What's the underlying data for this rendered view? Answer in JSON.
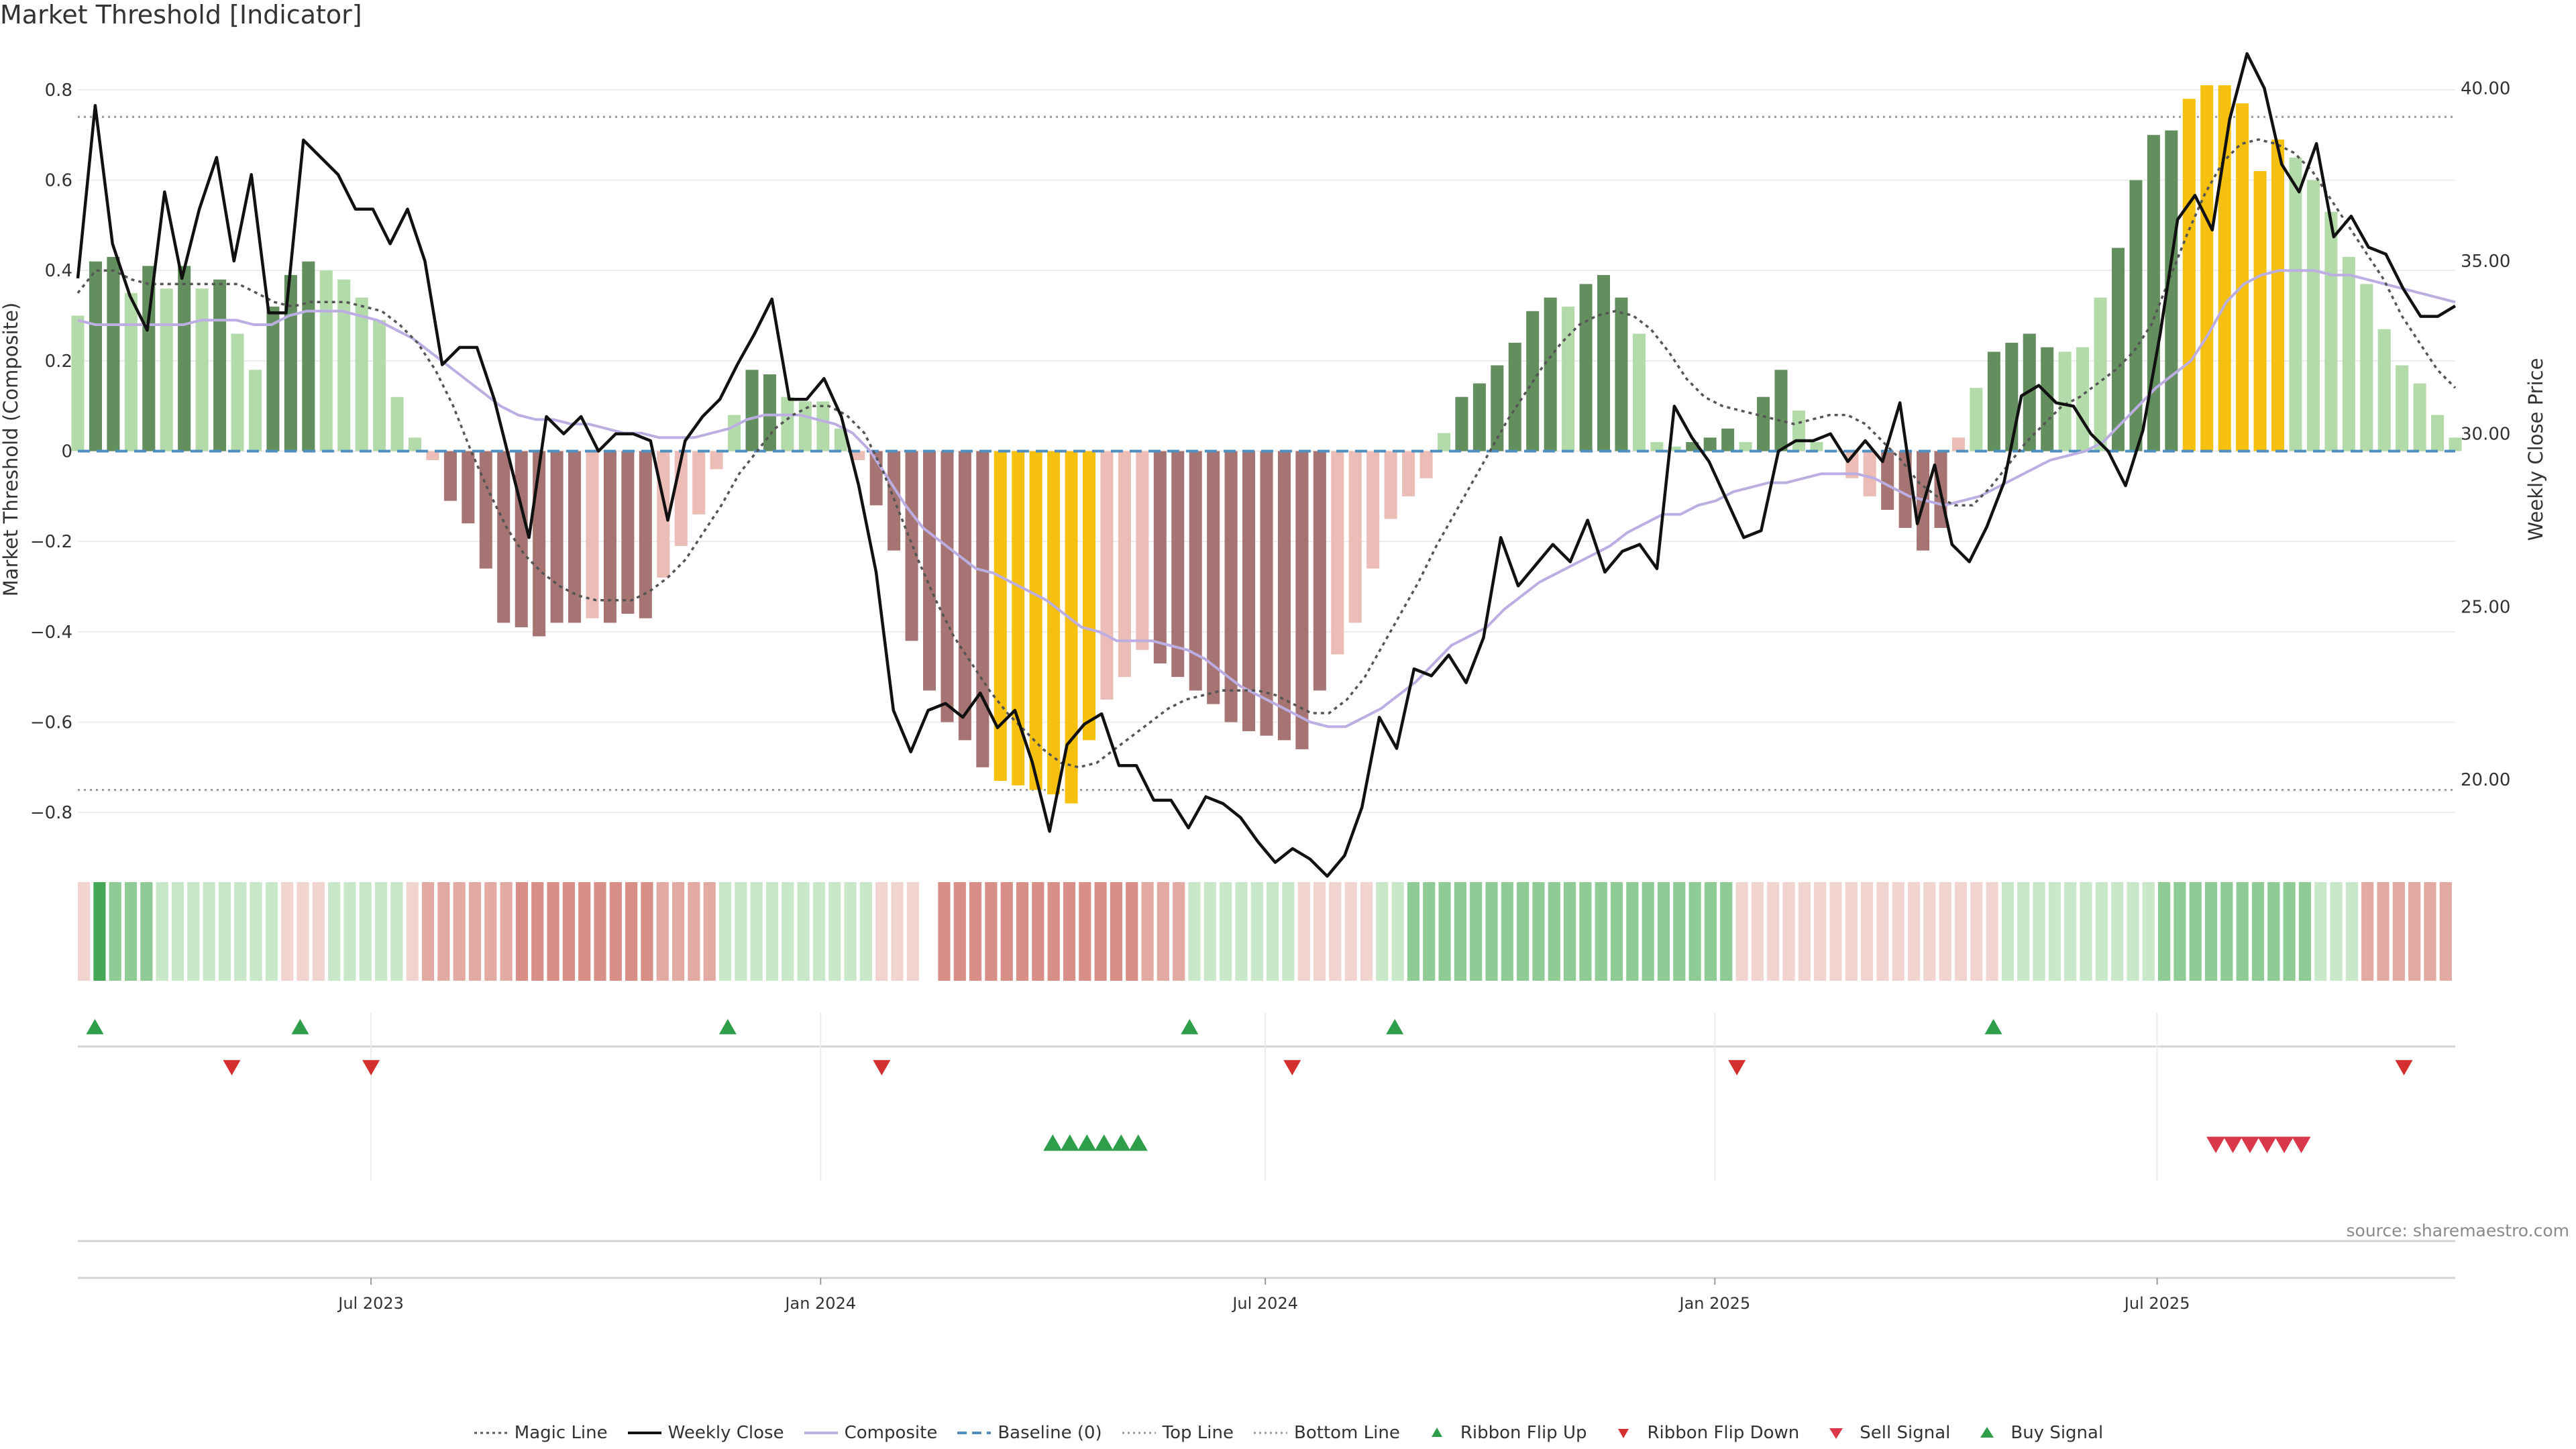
{
  "chart_data": {
    "type": "bar",
    "title": "Market Threshold [Indicator]",
    "ylabel": "Market Threshold (Composite)",
    "y2label": "Weekly Close Price",
    "ylim": [
      -0.88,
      0.88
    ],
    "y2lim": [
      18.0,
      41.0
    ],
    "yticks": [
      0.8,
      0.6,
      0.4,
      0.2,
      0,
      -0.2,
      -0.4,
      -0.6,
      -0.8
    ],
    "ytick_labels": [
      "0.8",
      "0.6",
      "0.4",
      "0.2",
      "0",
      "−0.2",
      "−0.4",
      "−0.6",
      "−0.8"
    ],
    "y2ticks": [
      40,
      35,
      30,
      25,
      20
    ],
    "y2tick_labels": [
      "40.00",
      "35.00",
      "30.00",
      "25.00",
      "20.00"
    ],
    "x_start": "2023-03-03",
    "x_end": "2025-10-31",
    "xticks": [
      {
        "date": "2023-07-01",
        "label": "Jul 2023"
      },
      {
        "date": "2024-01-01",
        "label": "Jan 2024"
      },
      {
        "date": "2024-07-01",
        "label": "Jul 2024"
      },
      {
        "date": "2025-01-01",
        "label": "Jan 2025"
      },
      {
        "date": "2025-07-01",
        "label": "Jul 2025"
      }
    ],
    "top_line": 0.74,
    "bottom_line": -0.75,
    "baseline": 0,
    "composite": [
      0.3,
      0.42,
      0.43,
      0.35,
      0.41,
      0.36,
      0.41,
      0.36,
      0.38,
      0.26,
      0.18,
      0.32,
      0.39,
      0.42,
      0.4,
      0.38,
      0.34,
      0.29,
      0.12,
      0.03,
      -0.02,
      -0.11,
      -0.16,
      -0.26,
      -0.38,
      -0.39,
      -0.41,
      -0.38,
      -0.38,
      -0.37,
      -0.38,
      -0.36,
      -0.37,
      -0.28,
      -0.21,
      -0.14,
      -0.04,
      0.08,
      0.18,
      0.17,
      0.12,
      0.11,
      0.11,
      0.05,
      -0.02,
      -0.12,
      -0.22,
      -0.42,
      -0.53,
      -0.6,
      -0.64,
      -0.7,
      -0.73,
      -0.74,
      -0.75,
      -0.76,
      -0.78,
      -0.64,
      -0.55,
      -0.5,
      -0.44,
      -0.47,
      -0.5,
      -0.53,
      -0.56,
      -0.6,
      -0.62,
      -0.63,
      -0.64,
      -0.66,
      -0.53,
      -0.45,
      -0.38,
      -0.26,
      -0.15,
      -0.1,
      -0.06,
      0.04,
      0.12,
      0.15,
      0.19,
      0.24,
      0.31,
      0.34,
      0.32,
      0.37,
      0.39,
      0.34,
      0.26,
      0.02,
      0.01,
      0.02,
      0.03,
      0.05,
      0.02,
      0.12,
      0.18,
      0.09,
      0.02,
      0,
      -0.06,
      -0.1,
      -0.13,
      -0.17,
      -0.22,
      -0.17,
      0.03,
      0.14,
      0.22,
      0.24,
      0.26,
      0.23,
      0.22,
      0.23,
      0.34,
      0.45,
      0.6,
      0.7,
      0.71,
      0.78,
      0.81,
      0.81,
      0.77,
      0.62,
      0.69,
      0.65,
      0.6,
      0.53,
      0.43,
      0.37,
      0.27,
      0.19,
      0.15,
      0.08,
      0.03
    ],
    "bar_category": [
      1,
      2,
      2,
      1,
      2,
      1,
      2,
      1,
      2,
      1,
      1,
      2,
      2,
      2,
      1,
      1,
      1,
      1,
      1,
      1,
      3,
      4,
      4,
      4,
      4,
      4,
      4,
      4,
      4,
      3,
      4,
      4,
      4,
      3,
      3,
      3,
      3,
      1,
      2,
      2,
      1,
      1,
      1,
      1,
      3,
      4,
      4,
      4,
      4,
      4,
      4,
      4,
      5,
      5,
      5,
      5,
      5,
      5,
      3,
      3,
      3,
      4,
      4,
      4,
      4,
      4,
      4,
      4,
      4,
      4,
      4,
      3,
      3,
      3,
      3,
      3,
      3,
      1,
      2,
      2,
      2,
      2,
      2,
      2,
      1,
      2,
      2,
      2,
      1,
      1,
      1,
      2,
      2,
      2,
      1,
      2,
      2,
      1,
      1,
      1,
      3,
      3,
      4,
      4,
      4,
      4,
      3,
      1,
      2,
      2,
      2,
      2,
      1,
      1,
      1,
      2,
      2,
      2,
      2,
      5,
      5,
      5,
      5,
      5,
      5,
      1,
      1,
      1,
      1,
      1,
      1,
      1,
      1,
      1,
      1,
      1
    ],
    "bar_colors": {
      "1": "#b3dbaa",
      "2": "#638f5e",
      "3": "#ecbcb6",
      "4": "#a67472",
      "5": "#f5c10e"
    },
    "weekly_close": [
      34.5,
      39.5,
      35.5,
      34.0,
      33.0,
      37.0,
      34.5,
      36.5,
      38.0,
      35.0,
      37.5,
      33.5,
      33.5,
      38.5,
      38.0,
      37.5,
      36.5,
      36.5,
      35.5,
      36.5,
      35.0,
      32.0,
      32.5,
      32.5,
      31.0,
      29.0,
      27.0,
      30.5,
      30.0,
      30.5,
      29.5,
      30.0,
      30.0,
      29.8,
      27.5,
      29.8,
      30.5,
      31.0,
      32.0,
      32.9,
      33.9,
      31.0,
      31.0,
      31.6,
      30.5,
      28.5,
      26.0,
      22.0,
      20.8,
      22.0,
      22.2,
      21.8,
      22.5,
      21.5,
      22.0,
      20.5,
      18.5,
      21.0,
      21.6,
      21.9,
      20.4,
      20.4,
      19.4,
      19.4,
      18.6,
      19.5,
      19.3,
      18.9,
      18.2,
      17.6,
      18.0,
      17.7,
      17.2,
      17.8,
      19.2,
      21.8,
      20.9,
      23.2,
      23.0,
      23.6,
      22.8,
      24.1,
      27.0,
      25.6,
      26.2,
      26.8,
      26.3,
      27.5,
      26.0,
      26.6,
      26.8,
      26.1,
      30.8,
      29.9,
      29.2,
      28.1,
      27.0,
      27.2,
      29.5,
      29.8,
      29.8,
      30.0,
      29.2,
      29.8,
      29.2,
      30.9,
      27.4,
      29.1,
      26.8,
      26.3,
      27.3,
      28.6,
      31.1,
      31.4,
      30.9,
      30.8,
      30.0,
      29.5,
      28.5,
      30.1,
      32.9,
      36.2,
      36.9,
      35.9,
      39.1,
      41.0,
      40.0,
      37.8,
      37.0,
      38.4,
      35.7,
      36.3,
      35.4,
      35.2,
      34.2,
      33.4,
      33.4,
      33.7
    ],
    "composite_line": [
      0.29,
      0.28,
      0.28,
      0.28,
      0.28,
      0.28,
      0.28,
      0.29,
      0.29,
      0.29,
      0.28,
      0.28,
      0.3,
      0.31,
      0.31,
      0.31,
      0.3,
      0.29,
      0.27,
      0.25,
      0.22,
      0.19,
      0.16,
      0.13,
      0.1,
      0.08,
      0.07,
      0.07,
      0.06,
      0.06,
      0.05,
      0.04,
      0.04,
      0.03,
      0.03,
      0.03,
      0.04,
      0.05,
      0.07,
      0.08,
      0.08,
      0.08,
      0.07,
      0.06,
      0.04,
      0.0,
      -0.06,
      -0.12,
      -0.17,
      -0.2,
      -0.23,
      -0.26,
      -0.27,
      -0.29,
      -0.31,
      -0.33,
      -0.36,
      -0.39,
      -0.4,
      -0.42,
      -0.42,
      -0.42,
      -0.43,
      -0.44,
      -0.46,
      -0.49,
      -0.52,
      -0.54,
      -0.56,
      -0.58,
      -0.6,
      -0.61,
      -0.61,
      -0.59,
      -0.57,
      -0.54,
      -0.51,
      -0.47,
      -0.43,
      -0.41,
      -0.39,
      -0.35,
      -0.32,
      -0.29,
      -0.27,
      -0.25,
      -0.23,
      -0.21,
      -0.18,
      -0.16,
      -0.14,
      -0.14,
      -0.12,
      -0.11,
      -0.09,
      -0.08,
      -0.07,
      -0.07,
      -0.06,
      -0.05,
      -0.05,
      -0.05,
      -0.06,
      -0.08,
      -0.1,
      -0.11,
      -0.12,
      -0.11,
      -0.1,
      -0.08,
      -0.06,
      -0.04,
      -0.02,
      -0.01,
      0.0,
      0.02,
      0.06,
      0.1,
      0.14,
      0.17,
      0.2,
      0.26,
      0.33,
      0.37,
      0.39,
      0.4,
      0.4,
      0.4,
      0.39,
      0.39,
      0.38,
      0.37,
      0.36,
      0.35,
      0.34,
      0.33
    ],
    "magic_line": [
      0.35,
      0.4,
      0.4,
      0.38,
      0.37,
      0.37,
      0.37,
      0.37,
      0.37,
      0.37,
      0.35,
      0.33,
      0.32,
      0.33,
      0.33,
      0.33,
      0.32,
      0.31,
      0.28,
      0.24,
      0.18,
      0.1,
      0.0,
      -0.09,
      -0.17,
      -0.23,
      -0.27,
      -0.3,
      -0.32,
      -0.33,
      -0.33,
      -0.33,
      -0.31,
      -0.28,
      -0.24,
      -0.18,
      -0.12,
      -0.05,
      0.0,
      0.05,
      0.08,
      0.1,
      0.1,
      0.08,
      0.04,
      -0.04,
      -0.14,
      -0.24,
      -0.33,
      -0.41,
      -0.47,
      -0.53,
      -0.58,
      -0.62,
      -0.66,
      -0.69,
      -0.7,
      -0.69,
      -0.66,
      -0.63,
      -0.6,
      -0.57,
      -0.55,
      -0.54,
      -0.53,
      -0.53,
      -0.53,
      -0.54,
      -0.56,
      -0.58,
      -0.58,
      -0.55,
      -0.5,
      -0.43,
      -0.36,
      -0.29,
      -0.21,
      -0.14,
      -0.07,
      0.0,
      0.07,
      0.13,
      0.19,
      0.24,
      0.28,
      0.3,
      0.31,
      0.3,
      0.27,
      0.22,
      0.16,
      0.12,
      0.1,
      0.09,
      0.08,
      0.07,
      0.06,
      0.07,
      0.08,
      0.08,
      0.06,
      0.02,
      -0.02,
      -0.07,
      -0.1,
      -0.12,
      -0.12,
      -0.08,
      -0.03,
      0.02,
      0.06,
      0.1,
      0.12,
      0.15,
      0.18,
      0.22,
      0.28,
      0.38,
      0.48,
      0.57,
      0.64,
      0.68,
      0.69,
      0.68,
      0.66,
      0.62,
      0.56,
      0.5,
      0.44,
      0.38,
      0.3,
      0.24,
      0.18,
      0.14
    ],
    "ribbon_levels": [
      -1,
      3,
      2,
      2,
      2,
      1,
      1,
      1,
      1,
      1,
      1,
      1,
      1,
      -1,
      -1,
      -1,
      1,
      1,
      1,
      1,
      1,
      -1,
      -2,
      -2,
      -2,
      -2,
      -2,
      -2,
      -3,
      -3,
      -3,
      -3,
      -3,
      -3,
      -3,
      -3,
      -3,
      -2,
      -2,
      -2,
      -2,
      1,
      1,
      1,
      1,
      1,
      1,
      1,
      1,
      1,
      1,
      -1,
      -1,
      -1,
      null,
      -3,
      -3,
      -3,
      -3,
      -3,
      -3,
      -3,
      -3,
      -3,
      -3,
      -3,
      -3,
      -3,
      -2,
      -2,
      -2,
      1,
      1,
      1,
      1,
      1,
      1,
      1,
      -1,
      -1,
      -1,
      -1,
      -1,
      1,
      1,
      2,
      2,
      2,
      2,
      2,
      2,
      2,
      2,
      2,
      2,
      2,
      2,
      2,
      2,
      2,
      2,
      2,
      2,
      2,
      2,
      2,
      -1,
      -1,
      -1,
      -1,
      -1,
      -1,
      -1,
      -1,
      -1,
      -1,
      -1,
      -1,
      -1,
      -1,
      -1,
      -1,
      -1,
      1,
      1,
      1,
      1,
      1,
      1,
      1,
      1,
      1,
      1,
      2,
      2,
      2,
      2,
      2,
      2,
      2,
      2,
      2,
      2,
      1,
      1,
      1,
      -2,
      -2,
      -2,
      -2,
      -2,
      -2
    ],
    "ribbon_colors": {
      "-3": "#d78f88",
      "-2": "#e3aaa4",
      "-1": "#f1d3d0",
      "1": "#c9e7c9",
      "2": "#8fcb94",
      "3": "#45a857"
    },
    "ribbon_flip_up": [
      "2023-03-10",
      "2023-06-02",
      "2023-11-24",
      "2024-05-31",
      "2024-08-23",
      "2025-04-25"
    ],
    "ribbon_flip_down": [
      "2023-05-05",
      "2023-07-01",
      "2024-01-26",
      "2024-07-12",
      "2025-01-10",
      "2025-10-10"
    ],
    "buy_signal": [
      "2024-04-05",
      "2024-04-12",
      "2024-04-19",
      "2024-04-26",
      "2024-05-03",
      "2024-05-10"
    ],
    "sell_signal": [
      "2025-07-25",
      "2025-08-01",
      "2025-08-08",
      "2025-08-15",
      "2025-08-22",
      "2025-08-29"
    ],
    "colors": {
      "weekly_close": "#111111",
      "composite": "#bcaee3",
      "magic_line": "#555555",
      "baseline": "#4f8fc0",
      "guide_line": "#9a9a9a",
      "flip_up": "#2e9e4a",
      "flip_down": "#d32f2f",
      "buy": "#2e9e4a",
      "sell": "#d9384a"
    },
    "legend": [
      {
        "key": "magic",
        "label": "Magic Line"
      },
      {
        "key": "weekly",
        "label": "Weekly Close"
      },
      {
        "key": "composite",
        "label": "Composite"
      },
      {
        "key": "baseline",
        "label": "Baseline (0)"
      },
      {
        "key": "top",
        "label": "Top Line"
      },
      {
        "key": "bottom",
        "label": "Bottom Line"
      },
      {
        "key": "flipup",
        "label": "Ribbon Flip Up"
      },
      {
        "key": "flipdown",
        "label": "Ribbon Flip Down"
      },
      {
        "key": "sell",
        "label": "Sell Signal"
      },
      {
        "key": "buy",
        "label": "Buy Signal"
      }
    ],
    "source": "source: sharemaestro.com"
  }
}
